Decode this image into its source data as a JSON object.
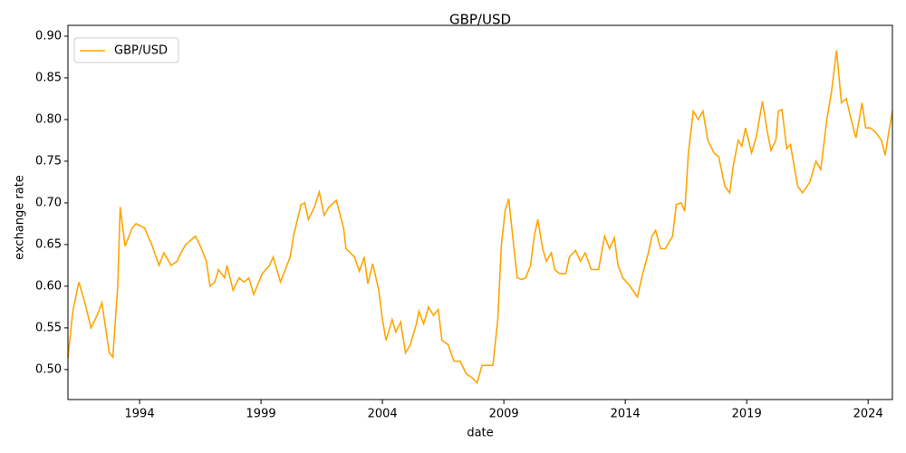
{
  "chart_data": {
    "type": "line",
    "title": "GBP/USD",
    "xlabel": "date",
    "ylabel": "exchange rate",
    "legend": "upper left",
    "grid": false,
    "xlim": [
      1991.05,
      2025.0
    ],
    "xticks": [
      1994,
      1999,
      2004,
      2009,
      2014,
      2019,
      2024
    ],
    "ylim": [
      0.464,
      0.913
    ],
    "yticks": [
      {
        "value": 0.5,
        "label": "0.50"
      },
      0.55,
      {
        "value": 0.6,
        "label": "0.60"
      },
      0.65,
      {
        "value": 0.7,
        "label": "0.70"
      },
      0.75,
      {
        "value": 0.8,
        "label": "0.80"
      },
      0.85,
      {
        "value": 0.9,
        "label": "0.90"
      }
    ],
    "x": [
      1991.05,
      1991.25,
      1991.5,
      1991.75,
      1992.0,
      1992.25,
      1992.45,
      1992.6,
      1992.75,
      1992.9,
      1993.1,
      1993.2,
      1993.4,
      1993.7,
      1993.85,
      1994.2,
      1994.5,
      1994.8,
      1995.0,
      1995.3,
      1995.55,
      1995.7,
      1995.9,
      1996.3,
      1996.55,
      1996.75,
      1996.9,
      1997.1,
      1997.25,
      1997.5,
      1997.6,
      1997.85,
      1998.1,
      1998.3,
      1998.5,
      1998.7,
      1999.05,
      1999.35,
      1999.5,
      1999.8,
      2000.0,
      2000.2,
      2000.35,
      2000.65,
      2000.8,
      2000.95,
      2001.2,
      2001.4,
      2001.6,
      2001.8,
      2002.1,
      2002.4,
      2002.5,
      2002.85,
      2003.05,
      2003.25,
      2003.4,
      2003.6,
      2003.85,
      2004.0,
      2004.15,
      2004.4,
      2004.55,
      2004.75,
      2004.95,
      2005.15,
      2005.4,
      2005.5,
      2005.7,
      2005.9,
      2006.1,
      2006.3,
      2006.45,
      2006.7,
      2006.95,
      2007.2,
      2007.45,
      2007.7,
      2007.9,
      2008.1,
      2008.3,
      2008.55,
      2008.75,
      2008.9,
      2009.05,
      2009.2,
      2009.4,
      2009.55,
      2009.75,
      2009.9,
      2010.1,
      2010.25,
      2010.4,
      2010.6,
      2010.75,
      2010.95,
      2011.1,
      2011.3,
      2011.55,
      2011.7,
      2011.95,
      2012.15,
      2012.35,
      2012.6,
      2012.9,
      2013.15,
      2013.35,
      2013.55,
      2013.7,
      2013.9,
      2014.2,
      2014.5,
      2014.7,
      2014.95,
      2015.1,
      2015.25,
      2015.45,
      2015.65,
      2015.95,
      2016.1,
      2016.3,
      2016.45,
      2016.6,
      2016.8,
      2017.0,
      2017.2,
      2017.4,
      2017.65,
      2017.85,
      2018.1,
      2018.3,
      2018.45,
      2018.65,
      2018.8,
      2018.95,
      2019.2,
      2019.4,
      2019.65,
      2019.85,
      2020.0,
      2020.2,
      2020.3,
      2020.45,
      2020.65,
      2020.8,
      2021.1,
      2021.3,
      2021.6,
      2021.85,
      2022.05,
      2022.3,
      2022.5,
      2022.7,
      2022.9,
      2023.1,
      2023.3,
      2023.5,
      2023.75,
      2023.9,
      2024.1,
      2024.3,
      2024.55,
      2024.7,
      2024.85,
      2025.0
    ],
    "series": [
      {
        "name": "GBP/USD",
        "color": "#ffa500",
        "values": [
          0.514,
          0.57,
          0.605,
          0.58,
          0.55,
          0.565,
          0.58,
          0.55,
          0.52,
          0.515,
          0.6,
          0.695,
          0.648,
          0.67,
          0.675,
          0.67,
          0.65,
          0.625,
          0.64,
          0.625,
          0.63,
          0.64,
          0.65,
          0.66,
          0.645,
          0.63,
          0.6,
          0.605,
          0.62,
          0.61,
          0.625,
          0.595,
          0.61,
          0.605,
          0.61,
          0.59,
          0.615,
          0.625,
          0.635,
          0.605,
          0.62,
          0.635,
          0.662,
          0.698,
          0.7,
          0.68,
          0.695,
          0.713,
          0.685,
          0.695,
          0.703,
          0.67,
          0.645,
          0.635,
          0.618,
          0.635,
          0.603,
          0.627,
          0.595,
          0.56,
          0.535,
          0.56,
          0.545,
          0.557,
          0.52,
          0.53,
          0.555,
          0.57,
          0.555,
          0.575,
          0.565,
          0.572,
          0.535,
          0.53,
          0.51,
          0.51,
          0.495,
          0.49,
          0.484,
          0.505,
          0.505,
          0.505,
          0.56,
          0.65,
          0.69,
          0.705,
          0.65,
          0.61,
          0.608,
          0.61,
          0.625,
          0.66,
          0.68,
          0.645,
          0.63,
          0.64,
          0.62,
          0.615,
          0.615,
          0.635,
          0.643,
          0.63,
          0.64,
          0.62,
          0.62,
          0.66,
          0.645,
          0.658,
          0.625,
          0.61,
          0.6,
          0.587,
          0.613,
          0.64,
          0.66,
          0.667,
          0.645,
          0.645,
          0.66,
          0.698,
          0.7,
          0.69,
          0.76,
          0.81,
          0.8,
          0.81,
          0.775,
          0.76,
          0.755,
          0.72,
          0.712,
          0.745,
          0.775,
          0.768,
          0.79,
          0.76,
          0.78,
          0.822,
          0.785,
          0.763,
          0.775,
          0.81,
          0.812,
          0.765,
          0.77,
          0.72,
          0.712,
          0.725,
          0.75,
          0.74,
          0.8,
          0.835,
          0.883,
          0.82,
          0.825,
          0.8,
          0.778,
          0.82,
          0.79,
          0.79,
          0.785,
          0.775,
          0.757,
          0.785,
          0.81
        ]
      }
    ]
  }
}
